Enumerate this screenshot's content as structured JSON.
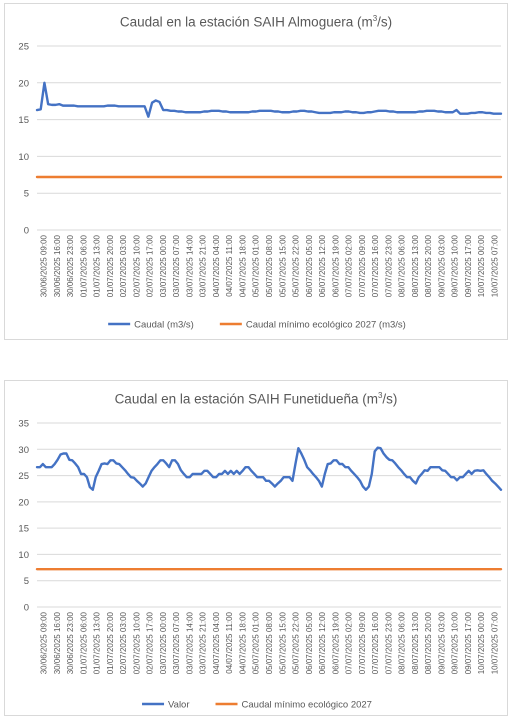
{
  "chart_data": [
    {
      "type": "line",
      "title_main": "Caudal en la estación SAIH Almoguera (m",
      "title_sup": "3",
      "title_end": "/s)",
      "ylim": [
        0,
        25
      ],
      "yticks": [
        "0",
        "5",
        "10",
        "15",
        "20",
        "25"
      ],
      "grid": true,
      "legend_position": "bottom",
      "x_tick_labels": [
        "30/06/2025 09:00",
        "30/06/2025 16:00",
        "30/06/2025 23:00",
        "01/07/2025 06:00",
        "01/07/2025 13:00",
        "01/07/2025 20:00",
        "02/07/2025 03:00",
        "02/07/2025 10:00",
        "02/07/2025 17:00",
        "03/07/2025 00:00",
        "03/07/2025 07:00",
        "03/07/2025 14:00",
        "03/07/2025 21:00",
        "04/07/2025 04:00",
        "04/07/2025 11:00",
        "04/07/2025 18:00",
        "05/07/2025 01:00",
        "05/07/2025 08:00",
        "05/07/2025 15:00",
        "05/07/2025 22:00",
        "06/07/2025 05:00",
        "06/07/2025 12:00",
        "06/07/2025 19:00",
        "07/07/2025 02:00",
        "07/07/2025 09:00",
        "07/07/2025 16:00",
        "07/07/2025 23:00",
        "08/07/2025 06:00",
        "08/07/2025 13:00",
        "08/07/2025 20:00",
        "09/07/2025 03:00",
        "09/07/2025 10:00",
        "09/07/2025 17:00",
        "10/07/2025 00:00",
        "10/07/2025 07:00"
      ],
      "series": [
        {
          "name": "Caudal (m3/s)",
          "color": "#4472c4",
          "values": [
            16.3,
            16.4,
            20.0,
            17.1,
            17.0,
            17.0,
            17.1,
            16.9,
            16.9,
            16.9,
            16.9,
            16.8,
            16.8,
            16.8,
            16.8,
            16.8,
            16.8,
            16.8,
            16.8,
            16.9,
            16.9,
            16.9,
            16.8,
            16.8,
            16.8,
            16.8,
            16.8,
            16.8,
            16.8,
            16.8,
            15.4,
            17.3,
            17.6,
            17.4,
            16.3,
            16.3,
            16.2,
            16.2,
            16.1,
            16.1,
            16.0,
            16.0,
            16.0,
            16.0,
            16.0,
            16.1,
            16.1,
            16.2,
            16.2,
            16.2,
            16.1,
            16.1,
            16.0,
            16.0,
            16.0,
            16.0,
            16.0,
            16.0,
            16.1,
            16.1,
            16.2,
            16.2,
            16.2,
            16.2,
            16.1,
            16.1,
            16.0,
            16.0,
            16.0,
            16.1,
            16.1,
            16.2,
            16.2,
            16.1,
            16.1,
            16.0,
            15.9,
            15.9,
            15.9,
            15.9,
            16.0,
            16.0,
            16.0,
            16.1,
            16.1,
            16.0,
            16.0,
            15.9,
            15.9,
            16.0,
            16.0,
            16.1,
            16.2,
            16.2,
            16.2,
            16.1,
            16.1,
            16.0,
            16.0,
            16.0,
            16.0,
            16.0,
            16.0,
            16.1,
            16.1,
            16.2,
            16.2,
            16.2,
            16.1,
            16.1,
            16.0,
            16.0,
            16.0,
            16.3,
            15.8,
            15.8,
            15.8,
            15.9,
            15.9,
            16.0,
            16.0,
            15.9,
            15.9,
            15.8,
            15.8,
            15.8
          ]
        },
        {
          "name": "Caudal mínimo ecológico 2027 (m3/s)",
          "color": "#ed7d31",
          "values": [
            7.2,
            7.2
          ]
        }
      ]
    },
    {
      "type": "line",
      "title_main": "Caudal en la estación SAIH Funetidueña (m",
      "title_sup": "3",
      "title_end": "/s)",
      "ylim": [
        0,
        35
      ],
      "yticks": [
        "0",
        "5",
        "10",
        "15",
        "20",
        "25",
        "30",
        "35"
      ],
      "grid": true,
      "legend_position": "bottom",
      "x_tick_labels": [
        "30/06/2025 09:00",
        "30/06/2025 16:00",
        "30/06/2025 23:00",
        "01/07/2025 06:00",
        "01/07/2025 13:00",
        "01/07/2025 20:00",
        "02/07/2025 03:00",
        "02/07/2025 10:00",
        "02/07/2025 17:00",
        "03/07/2025 00:00",
        "03/07/2025 07:00",
        "03/07/2025 14:00",
        "03/07/2025 21:00",
        "04/07/2025 04:00",
        "04/07/2025 11:00",
        "04/07/2025 18:00",
        "05/07/2025 01:00",
        "05/07/2025 08:00",
        "05/07/2025 15:00",
        "05/07/2025 22:00",
        "06/07/2025 05:00",
        "06/07/2025 12:00",
        "06/07/2025 19:00",
        "07/07/2025 02:00",
        "07/07/2025 09:00",
        "07/07/2025 16:00",
        "07/07/2025 23:00",
        "08/07/2025 06:00",
        "08/07/2025 13:00",
        "08/07/2025 20:00",
        "09/07/2025 03:00",
        "09/07/2025 10:00",
        "09/07/2025 17:00",
        "10/07/2025 00:00",
        "10/07/2025 07:00"
      ],
      "series": [
        {
          "name": "Valor",
          "color": "#4472c4",
          "values": [
            26.6,
            26.6,
            27.2,
            26.6,
            26.6,
            26.6,
            27.2,
            28.0,
            29.0,
            29.2,
            29.2,
            28.0,
            27.9,
            27.3,
            26.6,
            25.3,
            25.3,
            24.7,
            22.8,
            22.3,
            24.7,
            25.9,
            27.2,
            27.3,
            27.2,
            27.9,
            27.9,
            27.3,
            27.2,
            26.6,
            26.0,
            25.3,
            24.7,
            24.6,
            24.0,
            23.5,
            22.9,
            23.5,
            24.7,
            25.9,
            26.6,
            27.2,
            27.9,
            27.9,
            27.3,
            26.6,
            27.9,
            27.9,
            27.2,
            26.0,
            25.3,
            24.7,
            24.7,
            25.3,
            25.3,
            25.3,
            25.3,
            25.9,
            25.9,
            25.3,
            24.7,
            24.7,
            25.3,
            25.3,
            25.9,
            25.3,
            25.9,
            25.3,
            25.9,
            25.3,
            25.9,
            26.6,
            26.6,
            25.9,
            25.3,
            24.7,
            24.7,
            24.7,
            24.0,
            24.0,
            23.5,
            22.9,
            23.5,
            24.0,
            24.7,
            24.7,
            24.7,
            24.0,
            27.2,
            30.2,
            29.2,
            28.0,
            26.6,
            26.0,
            25.3,
            24.7,
            24.0,
            22.9,
            25.3,
            27.2,
            27.3,
            27.9,
            27.9,
            27.2,
            27.2,
            26.6,
            26.6,
            25.9,
            25.3,
            24.7,
            24.0,
            22.9,
            22.3,
            22.9,
            25.3,
            29.6,
            30.3,
            30.2,
            29.2,
            28.5,
            28.0,
            27.9,
            27.3,
            26.6,
            26.0,
            25.3,
            24.7,
            24.7,
            24.0,
            23.5,
            24.7,
            25.3,
            26.0,
            25.9,
            26.6,
            26.6,
            26.6,
            26.6,
            26.0,
            25.9,
            25.3,
            24.7,
            24.7,
            24.1,
            24.7,
            24.7,
            25.3,
            25.9,
            25.3,
            25.9,
            26.0,
            25.9,
            26.0,
            25.3,
            24.7,
            24.0,
            23.5,
            22.9,
            22.3
          ]
        },
        {
          "name": "Caudal mínimo ecológico 2027",
          "color": "#ed7d31",
          "values": [
            7.2,
            7.2
          ]
        }
      ]
    }
  ]
}
